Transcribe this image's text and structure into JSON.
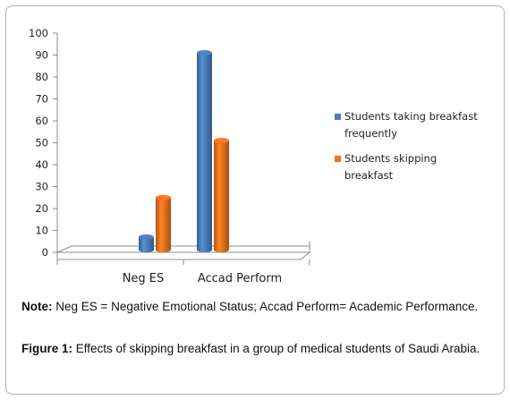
{
  "chart_data": {
    "type": "bar",
    "categories": [
      "Neg ES",
      "Accad Perform"
    ],
    "series": [
      {
        "name": "Students taking breakfast frequently",
        "values": [
          7,
          91
        ],
        "color": "#4a7ebb"
      },
      {
        "name": "Students skipping breakfast",
        "values": [
          25,
          51
        ],
        "color": "#f0721d"
      }
    ],
    "ylim": [
      0,
      100
    ],
    "yticks": [
      0,
      10,
      20,
      30,
      40,
      50,
      60,
      70,
      80,
      90,
      100
    ],
    "grid": false,
    "legend_position": "right",
    "style": "3d-cylinder"
  },
  "legend": {
    "item1_line1": "Students taking breakfast",
    "item1_line2": "frequently",
    "item2_line1": "Students skipping",
    "item2_line2": "breakfast"
  },
  "note": {
    "label": "Note:",
    "text": " Neg ES = Negative Emotional Status; Accad Perform= Academic Performance."
  },
  "caption": {
    "label": "Figure 1:",
    "text": " Effects of skipping breakfast  in a group of medical students of Saudi Arabia."
  }
}
